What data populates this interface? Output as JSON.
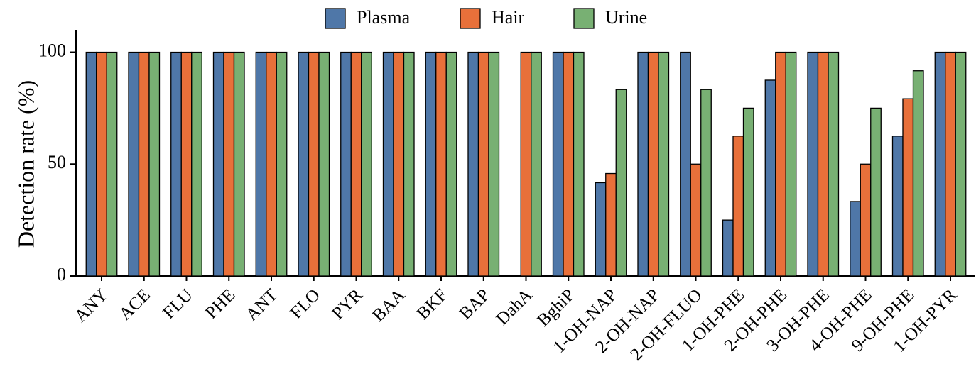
{
  "chart_data": {
    "type": "bar",
    "y_label": "Detection rate (%)",
    "categories": [
      "ANY",
      "ACE",
      "FLU",
      "PHE",
      "ANT",
      "FLO",
      "PYR",
      "BAA",
      "BKF",
      "BAP",
      "DahA",
      "BghiP",
      "1-OH-NAP",
      "2-OH-NAP",
      "2-OH-FLUO",
      "1-OH-PHE",
      "2-OH-PHE",
      "3-OH-PHE",
      "4-OH-PHE",
      "9-OH-PHE",
      "1-OH-PYR"
    ],
    "series": [
      {
        "name": "Plasma",
        "color": "#4f77a8",
        "values": [
          100,
          100,
          100,
          100,
          100,
          100,
          100,
          100,
          100,
          100,
          0,
          100,
          41.7,
          100,
          100,
          25,
          87.5,
          100,
          33.3,
          62.5,
          100
        ]
      },
      {
        "name": "Hair",
        "color": "#e8703a",
        "values": [
          100,
          100,
          100,
          100,
          100,
          100,
          100,
          100,
          100,
          100,
          100,
          100,
          45.8,
          100,
          50,
          62.5,
          100,
          100,
          50,
          79.2,
          100
        ]
      },
      {
        "name": "Urine",
        "color": "#78b073",
        "values": [
          100,
          100,
          100,
          100,
          100,
          100,
          100,
          100,
          100,
          100,
          100,
          100,
          83.3,
          100,
          83.3,
          75,
          100,
          100,
          75,
          91.7,
          100
        ]
      }
    ],
    "ylim": [
      0,
      110
    ],
    "yticks": [
      0,
      50,
      100
    ],
    "legend": "top"
  }
}
